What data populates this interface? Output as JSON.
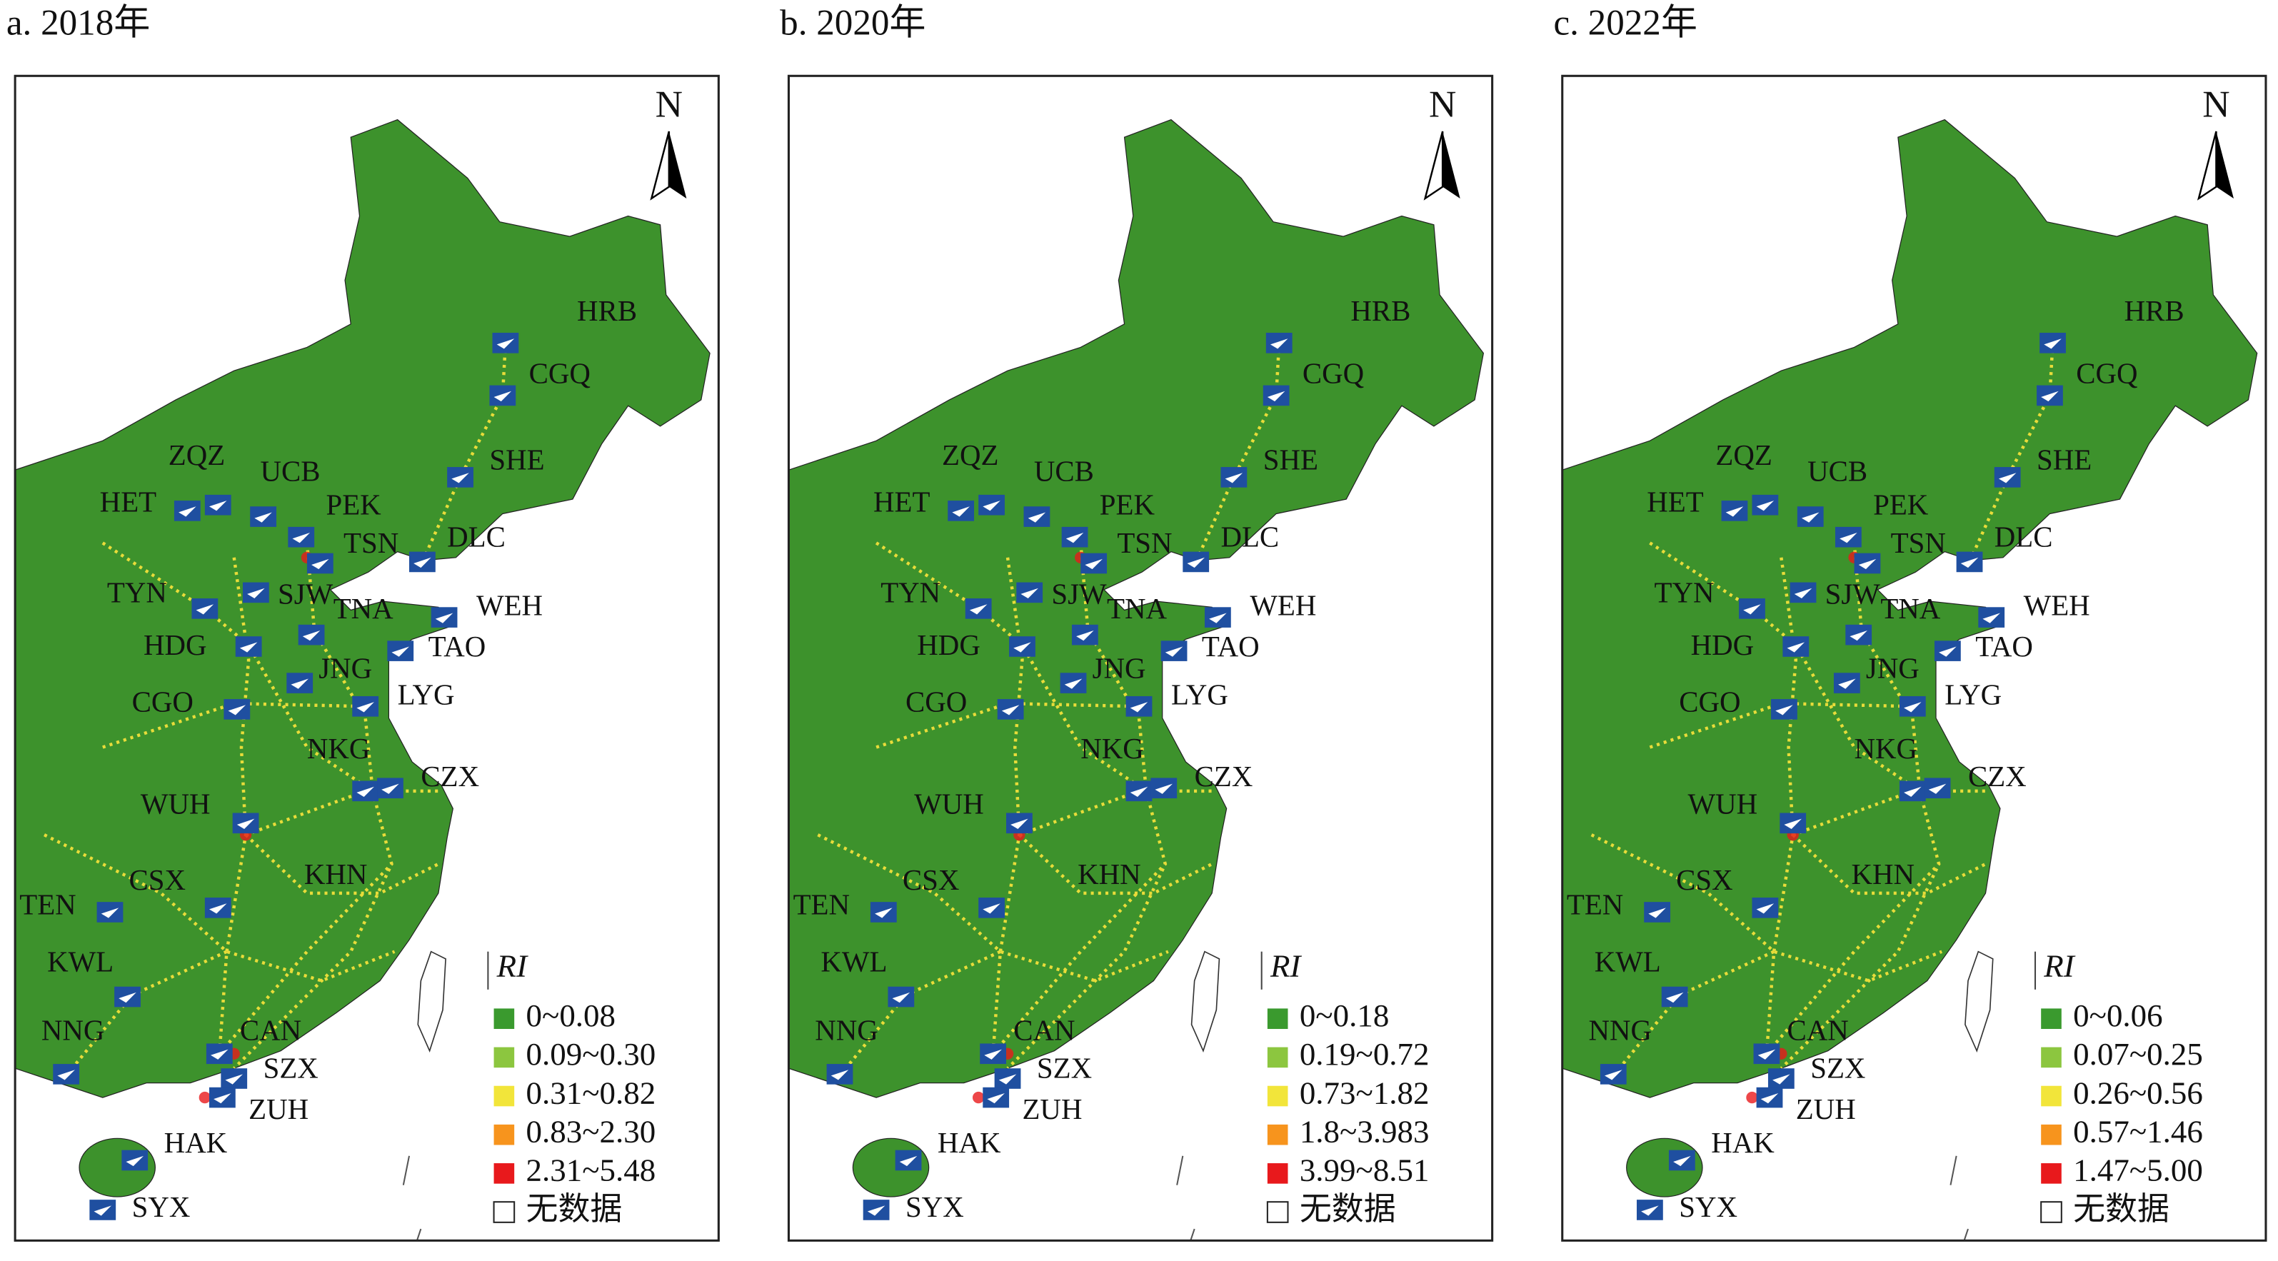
{
  "panels": [
    {
      "title": "a. 2018年",
      "north": "N",
      "legend": {
        "title": "RI",
        "items": [
          "0~0.08",
          "0.09~0.30",
          "0.31~0.82",
          "0.83~2.30",
          "2.31~5.48"
        ],
        "no_data": "无数据"
      },
      "airports": [
        "HRB",
        "CGQ",
        "SHE",
        "ZQZ",
        "UCB",
        "HET",
        "PEK",
        "TSN",
        "DLC",
        "TYN",
        "SJW",
        "TNA",
        "WEH",
        "HDG",
        "TAO",
        "JNG",
        "LYG",
        "CGO",
        "NKG",
        "CZX",
        "WUH",
        "KHN",
        "CSX",
        "TEN",
        "KWL",
        "CAN",
        "NNG",
        "SZX",
        "ZUH",
        "HAK",
        "SYX"
      ]
    },
    {
      "title": "b. 2020年",
      "north": "N",
      "legend": {
        "title": "RI",
        "items": [
          "0~0.18",
          "0.19~0.72",
          "0.73~1.82",
          "1.8~3.983",
          "3.99~8.51"
        ],
        "no_data": "无数据"
      },
      "airports": [
        "HRB",
        "CGQ",
        "SHE",
        "ZQZ",
        "UCB",
        "HET",
        "PEK",
        "TSN",
        "DLC",
        "TYN",
        "SJW",
        "TNA",
        "WEH",
        "HDG",
        "TAO",
        "JNG",
        "LYG",
        "CGO",
        "NKG",
        "CZX",
        "WUH",
        "KHN",
        "CSX",
        "TEN",
        "KWL",
        "CAN",
        "NNG",
        "SZX",
        "ZUH",
        "HAK",
        "SYX"
      ]
    },
    {
      "title": "c. 2022年",
      "north": "N",
      "legend": {
        "title": "RI",
        "items": [
          "0~0.06",
          "0.07~0.25",
          "0.26~0.56",
          "0.57~1.46",
          "1.47~5.00"
        ],
        "no_data": "无数据"
      },
      "airports": [
        "HRB",
        "CGQ",
        "SHE",
        "ZQZ",
        "UCB",
        "HET",
        "PEK",
        "TSN",
        "DLC",
        "TYN",
        "SJW",
        "TNA",
        "WEH",
        "HDG",
        "TAO",
        "JNG",
        "LYG",
        "CGO",
        "NKG",
        "CZX",
        "WUH",
        "KHN",
        "CSX",
        "TEN",
        "KWL",
        "CAN",
        "NNG",
        "SZX",
        "ZUH",
        "HAK",
        "SYX"
      ]
    }
  ]
}
